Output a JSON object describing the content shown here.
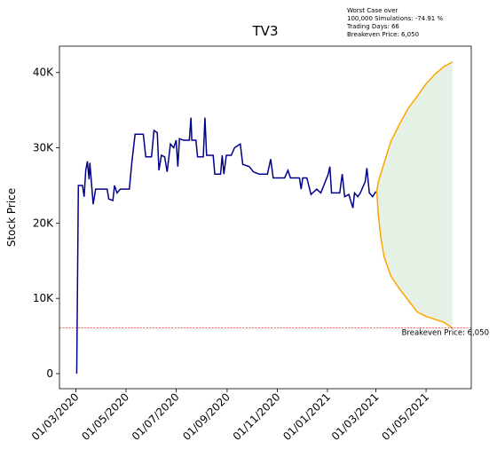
{
  "chart_data": {
    "type": "line",
    "title": "TV3",
    "ylabel": "Stock Price",
    "annotation_lines": [
      "Worst Case over",
      "100,000 Simulations: -74.91 %",
      "Trading Days: 66",
      "Breakeven Price: 6,050"
    ],
    "xlim": [
      "2020-02-10",
      "2021-06-25"
    ],
    "xticks": [
      {
        "value": "2020-03-01",
        "label": "01/03/2020"
      },
      {
        "value": "2020-05-01",
        "label": "01/05/2020"
      },
      {
        "value": "2020-07-01",
        "label": "01/07/2020"
      },
      {
        "value": "2020-09-01",
        "label": "01/09/2020"
      },
      {
        "value": "2020-11-01",
        "label": "01/11/2020"
      },
      {
        "value": "2021-01-01",
        "label": "01/01/2021"
      },
      {
        "value": "2021-03-01",
        "label": "01/03/2021"
      },
      {
        "value": "2021-05-01",
        "label": "01/05/2021"
      }
    ],
    "ylim": [
      -2000,
      43500
    ],
    "yticks": [
      0,
      {
        "value": 10000,
        "label": "10K"
      },
      {
        "value": 20000,
        "label": "20K"
      },
      {
        "value": 30000,
        "label": "30K"
      },
      {
        "value": 40000,
        "label": "40K"
      }
    ],
    "breakeven": {
      "value": 6050,
      "label": "Breakeven Price: 6,050",
      "color": "#ff0000"
    },
    "fill_color": "#2e8b2e",
    "series": [
      {
        "color": "#00008b",
        "x": [
          "2020-03-02",
          "2020-03-04",
          "2020-03-09",
          "2020-03-11",
          "2020-03-13",
          "2020-03-15",
          "2020-03-17",
          "2020-03-18",
          "2020-03-22",
          "2020-03-25",
          "2020-04-08",
          "2020-04-10",
          "2020-04-15",
          "2020-04-17",
          "2020-04-20",
          "2020-04-24",
          "2020-05-05",
          "2020-05-08",
          "2020-05-12",
          "2020-05-22",
          "2020-05-25",
          "2020-06-01",
          "2020-06-04",
          "2020-06-08",
          "2020-06-10",
          "2020-06-13",
          "2020-06-17",
          "2020-06-20",
          "2020-06-24",
          "2020-06-28",
          "2020-07-01",
          "2020-07-03",
          "2020-07-05",
          "2020-07-10",
          "2020-07-17",
          "2020-07-19",
          "2020-07-20",
          "2020-07-25",
          "2020-07-27",
          "2020-08-03",
          "2020-08-05",
          "2020-08-07",
          "2020-08-15",
          "2020-08-17",
          "2020-08-24",
          "2020-08-26",
          "2020-08-28",
          "2020-08-31",
          "2020-09-06",
          "2020-09-10",
          "2020-09-17",
          "2020-09-20",
          "2020-09-28",
          "2020-10-03",
          "2020-10-10",
          "2020-10-15",
          "2020-10-20",
          "2020-10-24",
          "2020-10-27",
          "2020-11-10",
          "2020-11-14",
          "2020-11-17",
          "2020-11-28",
          "2020-11-30",
          "2020-12-02",
          "2020-12-07",
          "2020-12-12",
          "2020-12-19",
          "2020-12-24",
          "2021-01-02",
          "2021-01-04",
          "2021-01-06",
          "2021-01-10",
          "2021-01-16",
          "2021-01-19",
          "2021-01-22",
          "2021-01-27",
          "2021-02-01",
          "2021-02-03",
          "2021-02-07",
          "2021-02-10",
          "2021-02-16",
          "2021-02-18",
          "2021-02-21",
          "2021-02-25",
          "2021-03-01"
        ],
        "values": [
          0,
          25000,
          25000,
          23500,
          27000,
          28200,
          25800,
          28000,
          22500,
          24500,
          24500,
          23200,
          23000,
          25000,
          24000,
          24500,
          24500,
          28000,
          31800,
          31800,
          28800,
          28800,
          32300,
          32000,
          27000,
          29000,
          28800,
          26800,
          30500,
          30000,
          31000,
          27500,
          31200,
          31000,
          31000,
          34000,
          31000,
          31000,
          28800,
          28800,
          34000,
          29000,
          29000,
          26500,
          26500,
          29000,
          26500,
          29000,
          29000,
          30000,
          30500,
          27800,
          27500,
          26800,
          26500,
          26500,
          26500,
          28500,
          26000,
          26000,
          27000,
          26000,
          26000,
          24500,
          26000,
          26000,
          23800,
          24500,
          24000,
          26500,
          27500,
          24000,
          24000,
          24000,
          26500,
          23500,
          23800,
          22000,
          24000,
          23500,
          24000,
          25500,
          27300,
          24000,
          23500,
          24200
        ]
      },
      {
        "color": "#ffa500",
        "x": [
          "2021-03-02",
          "2021-03-04",
          "2021-03-11",
          "2021-03-19",
          "2021-03-30",
          "2021-04-09",
          "2021-04-20",
          "2021-05-01",
          "2021-05-12",
          "2021-05-23",
          "2021-06-02"
        ],
        "values": [
          24200,
          25500,
          28000,
          30800,
          33200,
          35200,
          36800,
          38500,
          39800,
          40800,
          41400
        ]
      },
      {
        "color": "#ffa500",
        "x": [
          "2021-03-02",
          "2021-03-04",
          "2021-03-07",
          "2021-03-11",
          "2021-03-19",
          "2021-03-30",
          "2021-04-09",
          "2021-04-20",
          "2021-05-01",
          "2021-05-12",
          "2021-05-23",
          "2021-06-02"
        ],
        "values": [
          24200,
          21000,
          18000,
          15500,
          13000,
          11200,
          9800,
          8200,
          7600,
          7200,
          6800,
          6050
        ]
      }
    ]
  }
}
